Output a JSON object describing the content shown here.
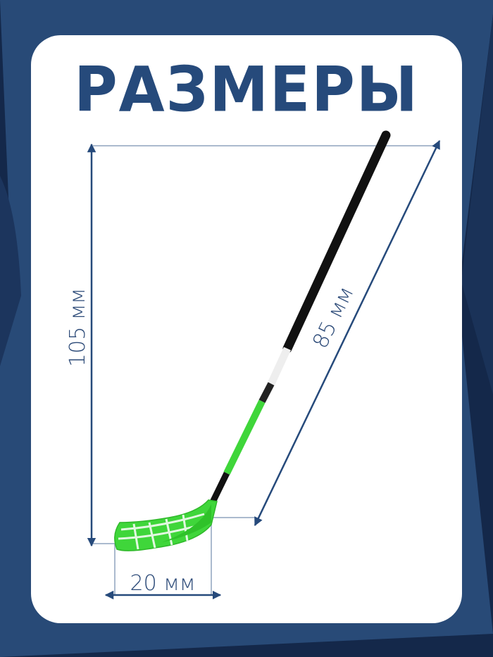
{
  "title": "РАЗМЕРЫ",
  "dimensions": {
    "height_label": "105 мм",
    "shaft_label": "85 мм",
    "blade_label": "20 мм"
  },
  "colors": {
    "background": "#284a77",
    "background_dark": "#14284a",
    "card": "#ffffff",
    "accent": "#264a7b",
    "guide_line": "#8fa3bd",
    "blade": "#3fd63a",
    "shaft": "#111111"
  }
}
